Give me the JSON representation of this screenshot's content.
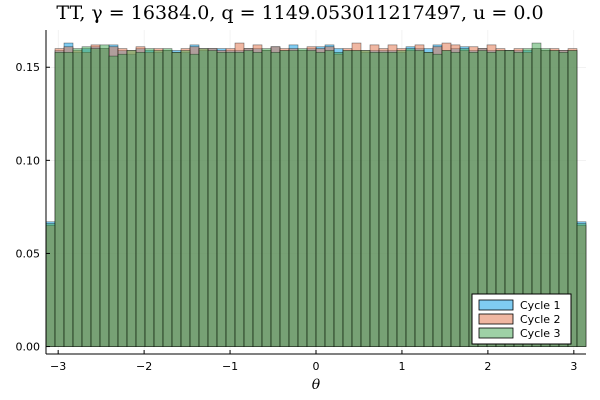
{
  "chart_data": {
    "type": "bar",
    "title": "TT, γ = 16384.0, q = 1149.053011217497, u = 0.0",
    "xlabel": "θ",
    "ylabel": "",
    "xlim": [
      -3.14159,
      3.14159
    ],
    "ylim": [
      -0.004,
      0.17
    ],
    "x_ticks": [
      -3,
      -2,
      -1,
      0,
      1,
      2,
      3
    ],
    "x_tick_labels": [
      "−3",
      "−2",
      "−1",
      "0",
      "1",
      "2",
      "3"
    ],
    "y_ticks": [
      0.0,
      0.05,
      0.1,
      0.15
    ],
    "y_tick_labels": [
      "0.00",
      "0.05",
      "0.10",
      "0.15"
    ],
    "grid": true,
    "legend_position": "bottom-right",
    "bin_count": 60,
    "series": [
      {
        "name": "Cycle 1",
        "color": "#0099e6",
        "values": [
          0.067,
          0.159,
          0.163,
          0.158,
          0.16,
          0.161,
          0.16,
          0.162,
          0.159,
          0.157,
          0.16,
          0.159,
          0.158,
          0.159,
          0.159,
          0.158,
          0.162,
          0.159,
          0.16,
          0.16,
          0.159,
          0.159,
          0.16,
          0.16,
          0.159,
          0.161,
          0.159,
          0.162,
          0.159,
          0.16,
          0.161,
          0.162,
          0.16,
          0.159,
          0.159,
          0.158,
          0.159,
          0.159,
          0.159,
          0.158,
          0.161,
          0.16,
          0.16,
          0.162,
          0.159,
          0.16,
          0.161,
          0.159,
          0.16,
          0.159,
          0.159,
          0.159,
          0.159,
          0.159,
          0.16,
          0.159,
          0.159,
          0.159,
          0.159,
          0.067
        ]
      },
      {
        "name": "Cycle 2",
        "color": "#e26f46",
        "values": [
          0.065,
          0.16,
          0.161,
          0.159,
          0.158,
          0.162,
          0.16,
          0.161,
          0.16,
          0.159,
          0.161,
          0.158,
          0.16,
          0.159,
          0.158,
          0.16,
          0.161,
          0.16,
          0.16,
          0.159,
          0.16,
          0.163,
          0.16,
          0.162,
          0.159,
          0.161,
          0.16,
          0.16,
          0.159,
          0.161,
          0.16,
          0.161,
          0.157,
          0.16,
          0.163,
          0.159,
          0.162,
          0.16,
          0.162,
          0.16,
          0.159,
          0.162,
          0.158,
          0.161,
          0.163,
          0.162,
          0.159,
          0.161,
          0.16,
          0.162,
          0.16,
          0.159,
          0.16,
          0.158,
          0.16,
          0.159,
          0.16,
          0.159,
          0.16,
          0.065
        ]
      },
      {
        "name": "Cycle 3",
        "color": "#3da44d",
        "values": [
          0.066,
          0.158,
          0.158,
          0.16,
          0.161,
          0.16,
          0.162,
          0.156,
          0.157,
          0.159,
          0.158,
          0.16,
          0.159,
          0.16,
          0.158,
          0.159,
          0.157,
          0.16,
          0.159,
          0.158,
          0.158,
          0.158,
          0.159,
          0.158,
          0.16,
          0.158,
          0.159,
          0.159,
          0.16,
          0.159,
          0.158,
          0.159,
          0.158,
          0.159,
          0.159,
          0.159,
          0.158,
          0.158,
          0.158,
          0.159,
          0.16,
          0.159,
          0.158,
          0.157,
          0.159,
          0.158,
          0.16,
          0.158,
          0.159,
          0.158,
          0.159,
          0.159,
          0.158,
          0.16,
          0.163,
          0.16,
          0.159,
          0.158,
          0.159,
          0.066
        ]
      }
    ]
  }
}
